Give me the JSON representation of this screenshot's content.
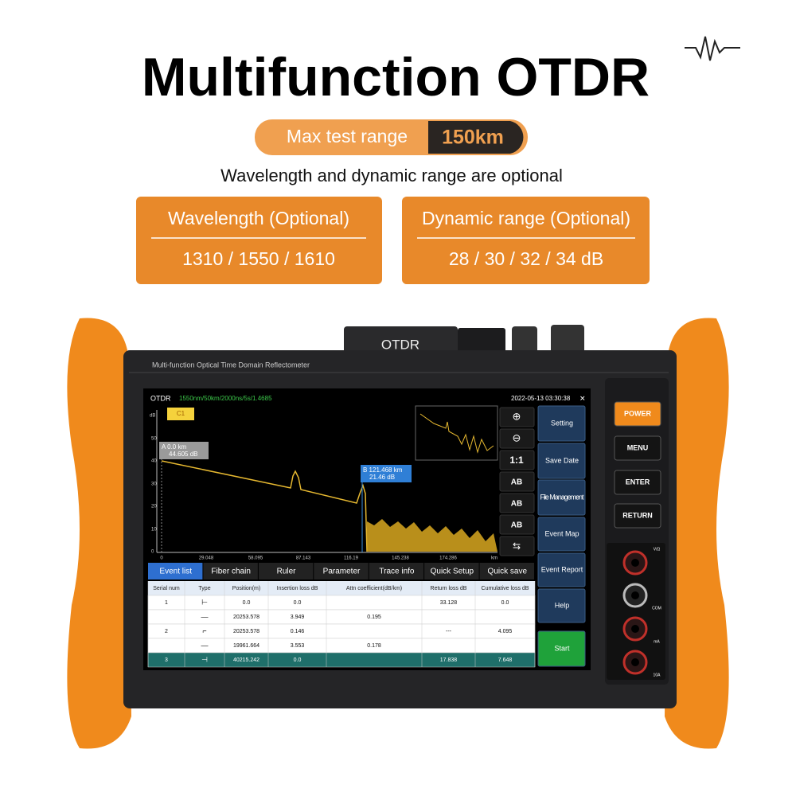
{
  "header": {
    "title": "Multifunction OTDR",
    "badge_label": "Max test range",
    "badge_value": "150km",
    "subtitle": "Wavelength and dynamic range are optional"
  },
  "cards": [
    {
      "title": "Wavelength (Optional)",
      "value": "1310 / 1550 / 1610"
    },
    {
      "title": "Dynamic range (Optional)",
      "value": "28 / 30 / 32 / 34 dB"
    }
  ],
  "device": {
    "label": "OTDR",
    "caption": "Multi-function Optical Time Domain Reflectometer",
    "side_buttons": [
      "POWER",
      "MENU",
      "ENTER",
      "RETURN"
    ],
    "meter_labels": [
      "V/Ω",
      "COM",
      "mA",
      "10A"
    ]
  },
  "screen": {
    "app": "OTDR",
    "params": "1550nm/50km/2000ns/5s/1.4685",
    "datetime": "2022-05-13 03:30:38",
    "tag": "C1",
    "y_unit": "dB",
    "yticks": [
      "50",
      "40",
      "30",
      "20",
      "10",
      "0"
    ],
    "xticks": [
      "0",
      "29.048",
      "58.095",
      "87.143",
      "116.19",
      "145.238",
      "174.286"
    ],
    "x_unit": "km",
    "cursor_a": [
      "A 0.0 km",
      "44.605 dB"
    ],
    "cursor_b": [
      "B 121.468 km",
      "21.46 dB"
    ],
    "tools": [
      "1:1",
      "AB",
      "AB",
      "AB"
    ],
    "menu": [
      "Setting",
      "Save Date",
      "File Management",
      "Event Map",
      "Event Report",
      "Help",
      "Start"
    ],
    "tabs": [
      "Event list",
      "Fiber chain",
      "Ruler",
      "Parameter",
      "Trace info",
      "Quick Setup",
      "Quick save"
    ],
    "table": {
      "headers": [
        "Serial num",
        "Type",
        "Position(m)",
        "Insertion loss dB",
        "Attn coefficient(dB/km)",
        "Return loss dB",
        "Cumulative loss dB"
      ],
      "rows": [
        {
          "serial": "1",
          "position": "0.0",
          "insertion": "0.0",
          "return": "33.128",
          "cumulative": "0.0"
        },
        {
          "position": "20253.578",
          "insertion": "3.949",
          "attn": "0.195"
        },
        {
          "serial": "2",
          "position": "20253.578",
          "insertion": "0.146",
          "return": "---",
          "cumulative": "4.095"
        },
        {
          "position": "19961.664",
          "insertion": "3.553",
          "attn": "0.178"
        },
        {
          "serial": "3",
          "position": "40215.242",
          "insertion": "0.0",
          "return": "17.838",
          "cumulative": "7.648"
        }
      ]
    }
  }
}
